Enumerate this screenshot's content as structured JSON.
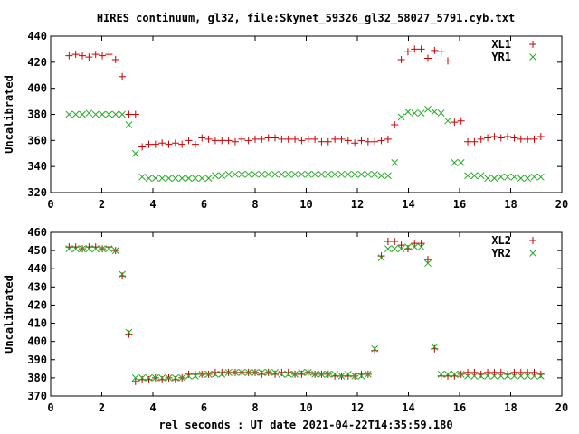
{
  "title": "HIRES continuum, gl32, file:Skynet_59326_gl32_58027_5791.cyb.txt",
  "xlabel": "rel seconds : UT date 2021-04-22T14:35:59.180",
  "colors": {
    "series_a": "#cc0000",
    "series_b": "#22aa22",
    "axis": "#000000"
  },
  "chart_data": [
    {
      "type": "scatter",
      "ylabel": "Uncalibrated",
      "xlim": [
        0,
        20
      ],
      "ylim": [
        320,
        440
      ],
      "xticks": [
        0,
        2,
        4,
        6,
        8,
        10,
        12,
        14,
        16,
        18,
        20
      ],
      "yticks": [
        320,
        340,
        360,
        380,
        400,
        420,
        440
      ],
      "legend_position": "top-right",
      "series": [
        {
          "name": "XL1",
          "marker": "plus",
          "x": [
            0.72,
            0.98,
            1.24,
            1.5,
            1.76,
            2.02,
            2.28,
            2.54,
            2.8,
            3.06,
            3.32,
            3.58,
            3.84,
            4.1,
            4.36,
            4.62,
            4.88,
            5.14,
            5.4,
            5.66,
            5.92,
            6.18,
            6.44,
            6.7,
            6.96,
            7.22,
            7.48,
            7.74,
            8.0,
            8.26,
            8.52,
            8.78,
            9.04,
            9.3,
            9.56,
            9.82,
            10.08,
            10.34,
            10.6,
            10.86,
            11.12,
            11.38,
            11.64,
            11.9,
            12.16,
            12.42,
            12.68,
            12.94,
            13.2,
            13.46,
            13.72,
            13.98,
            14.24,
            14.5,
            14.76,
            15.02,
            15.28,
            15.54,
            15.8,
            16.06,
            16.32,
            16.58,
            16.84,
            17.1,
            17.36,
            17.62,
            17.88,
            18.14,
            18.4,
            18.66,
            18.92,
            19.18
          ],
          "y": [
            425,
            426,
            425,
            424,
            426,
            425,
            426,
            422,
            409,
            380,
            380,
            355,
            357,
            357,
            358,
            357,
            358,
            357,
            360,
            357,
            362,
            361,
            360,
            360,
            360,
            359,
            361,
            360,
            361,
            361,
            362,
            362,
            361,
            361,
            361,
            360,
            361,
            361,
            359,
            359,
            361,
            361,
            360,
            358,
            360,
            359,
            359,
            360,
            361,
            372,
            422,
            428,
            430,
            430,
            423,
            429,
            428,
            421,
            374,
            375,
            359,
            359,
            361,
            362,
            363,
            362,
            363,
            362,
            361,
            361,
            361,
            363
          ],
          "_note": ""
        },
        {
          "name": "YR1",
          "marker": "cross",
          "x": [
            0.72,
            0.98,
            1.24,
            1.5,
            1.76,
            2.02,
            2.28,
            2.54,
            2.8,
            3.06,
            3.32,
            3.58,
            3.84,
            4.1,
            4.36,
            4.62,
            4.88,
            5.14,
            5.4,
            5.66,
            5.92,
            6.18,
            6.44,
            6.7,
            6.96,
            7.22,
            7.48,
            7.74,
            8.0,
            8.26,
            8.52,
            8.78,
            9.04,
            9.3,
            9.56,
            9.82,
            10.08,
            10.34,
            10.6,
            10.86,
            11.12,
            11.38,
            11.64,
            11.9,
            12.16,
            12.42,
            12.68,
            12.94,
            13.2,
            13.46,
            13.72,
            13.98,
            14.24,
            14.5,
            14.76,
            15.02,
            15.28,
            15.54,
            15.8,
            16.06,
            16.32,
            16.58,
            16.84,
            17.1,
            17.36,
            17.62,
            17.88,
            18.14,
            18.4,
            18.66,
            18.92,
            19.18
          ],
          "y": [
            380,
            380,
            380,
            381,
            380,
            380,
            380,
            380,
            380,
            372,
            350,
            332,
            331,
            331,
            331,
            331,
            331,
            331,
            331,
            331,
            331,
            331,
            333,
            333,
            334,
            334,
            334,
            334,
            334,
            334,
            334,
            334,
            334,
            334,
            334,
            334,
            334,
            334,
            334,
            334,
            334,
            334,
            334,
            334,
            334,
            334,
            334,
            333,
            333,
            343,
            378,
            382,
            381,
            381,
            384,
            382,
            381,
            375,
            343,
            343,
            333,
            333,
            333,
            331,
            331,
            332,
            332,
            332,
            331,
            331,
            332,
            332
          ]
        }
      ]
    },
    {
      "type": "scatter",
      "ylabel": "Uncalibrated",
      "xlim": [
        0,
        20
      ],
      "ylim": [
        370,
        460
      ],
      "xticks": [
        0,
        2,
        4,
        6,
        8,
        10,
        12,
        14,
        16,
        18,
        20
      ],
      "yticks": [
        370,
        380,
        390,
        400,
        410,
        420,
        430,
        440,
        450,
        460
      ],
      "legend_position": "top-right",
      "series": [
        {
          "name": "XL2",
          "marker": "plus",
          "x": [
            0.72,
            0.98,
            1.24,
            1.5,
            1.76,
            2.02,
            2.28,
            2.54,
            2.8,
            3.06,
            3.32,
            3.58,
            3.84,
            4.1,
            4.36,
            4.62,
            4.88,
            5.14,
            5.4,
            5.66,
            5.92,
            6.18,
            6.44,
            6.7,
            6.96,
            7.22,
            7.48,
            7.74,
            8.0,
            8.26,
            8.52,
            8.78,
            9.04,
            9.3,
            9.56,
            9.82,
            10.08,
            10.34,
            10.6,
            10.86,
            11.12,
            11.38,
            11.64,
            11.9,
            12.16,
            12.42,
            12.68,
            12.94,
            13.2,
            13.46,
            13.72,
            13.98,
            14.24,
            14.5,
            14.76,
            15.02,
            15.28,
            15.54,
            15.8,
            16.06,
            16.32,
            16.58,
            16.84,
            17.1,
            17.36,
            17.62,
            17.88,
            18.14,
            18.4,
            18.66,
            18.92,
            19.18
          ],
          "y": [
            452,
            452,
            451,
            452,
            452,
            451,
            452,
            450,
            436,
            404,
            378,
            379,
            379,
            380,
            379,
            380,
            379,
            380,
            382,
            382,
            382,
            382,
            383,
            383,
            383,
            383,
            383,
            383,
            383,
            382,
            383,
            382,
            383,
            383,
            382,
            382,
            383,
            382,
            382,
            382,
            381,
            381,
            381,
            381,
            382,
            382,
            395,
            447,
            455,
            455,
            453,
            451,
            454,
            454,
            445,
            396,
            381,
            381,
            381,
            382,
            383,
            383,
            382,
            383,
            383,
            383,
            382,
            383,
            383,
            383,
            383,
            382
          ],
          "_note": ""
        },
        {
          "name": "YR2",
          "marker": "cross",
          "x": [
            0.72,
            0.98,
            1.24,
            1.5,
            1.76,
            2.02,
            2.28,
            2.54,
            2.8,
            3.06,
            3.32,
            3.58,
            3.84,
            4.1,
            4.36,
            4.62,
            4.88,
            5.14,
            5.4,
            5.66,
            5.92,
            6.18,
            6.44,
            6.7,
            6.96,
            7.22,
            7.48,
            7.74,
            8.0,
            8.26,
            8.52,
            8.78,
            9.04,
            9.3,
            9.56,
            9.82,
            10.08,
            10.34,
            10.6,
            10.86,
            11.12,
            11.38,
            11.64,
            11.9,
            12.16,
            12.42,
            12.68,
            12.94,
            13.2,
            13.46,
            13.72,
            13.98,
            14.24,
            14.5,
            14.76,
            15.02,
            15.28,
            15.54,
            15.8,
            16.06,
            16.32,
            16.58,
            16.84,
            17.1,
            17.36,
            17.62,
            17.88,
            18.14,
            18.4,
            18.66,
            18.92,
            19.18
          ],
          "y": [
            451,
            451,
            451,
            451,
            451,
            451,
            451,
            450,
            437,
            405,
            380,
            380,
            380,
            380,
            380,
            380,
            380,
            380,
            381,
            381,
            382,
            382,
            382,
            382,
            383,
            383,
            383,
            383,
            383,
            383,
            383,
            383,
            382,
            382,
            382,
            383,
            383,
            382,
            382,
            382,
            382,
            381,
            382,
            381,
            381,
            382,
            396,
            446,
            451,
            451,
            451,
            452,
            452,
            452,
            443,
            397,
            382,
            382,
            382,
            382,
            381,
            381,
            381,
            381,
            381,
            381,
            381,
            381,
            381,
            381,
            381,
            381
          ]
        }
      ]
    }
  ]
}
